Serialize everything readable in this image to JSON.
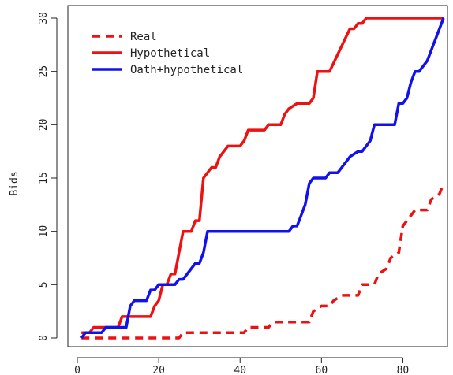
{
  "chart_data": {
    "type": "line",
    "xlabel": "",
    "ylabel": "Bids",
    "xlim": [
      0,
      90
    ],
    "ylim": [
      0,
      30
    ],
    "x_ticks": [
      0,
      20,
      40,
      60,
      80
    ],
    "y_ticks": [
      0,
      5,
      10,
      15,
      20,
      25,
      30
    ],
    "grid": false,
    "legend_position": "top-left",
    "series": [
      {
        "name": "Real",
        "color": "#ee1111",
        "style": "dashed",
        "x": [
          1,
          10,
          11,
          20,
          21,
          25,
          26,
          40,
          41,
          42,
          47,
          48,
          50,
          51,
          57,
          58,
          60,
          62,
          63,
          65,
          66,
          69,
          70,
          73,
          74,
          76,
          77,
          79,
          80,
          82,
          83,
          86,
          87,
          89,
          90
        ],
        "y": [
          0,
          0,
          0,
          0,
          0,
          0,
          0.5,
          0.5,
          0.5,
          1,
          1,
          1.5,
          1.5,
          1.5,
          1.5,
          2.5,
          3,
          3,
          3.5,
          4,
          4,
          4,
          5,
          5,
          6,
          6.5,
          7.5,
          8,
          10.5,
          11.5,
          12,
          12,
          13,
          13.5,
          14.5
        ]
      },
      {
        "name": "Hypothetical",
        "color": "#ee1111",
        "style": "solid",
        "x": [
          1,
          3,
          4,
          9,
          10,
          11,
          18,
          19,
          20,
          21,
          22,
          23,
          24,
          26,
          28,
          29,
          30,
          31,
          33,
          34,
          35,
          36,
          37,
          39,
          40,
          41,
          42,
          44,
          46,
          47,
          50,
          51,
          52,
          54,
          55,
          57,
          58,
          59,
          61,
          62,
          67,
          68,
          69,
          70,
          71,
          90
        ],
        "y": [
          0.5,
          0.5,
          1,
          1,
          1,
          2,
          2,
          3,
          3.5,
          5,
          5,
          6,
          6,
          10,
          10,
          11,
          11,
          15,
          16,
          16,
          17,
          17.5,
          18,
          18,
          18,
          18.5,
          19.5,
          19.5,
          19.5,
          20,
          20,
          21,
          21.5,
          22,
          22,
          22,
          22.5,
          25,
          25,
          25,
          29,
          29,
          29.5,
          29.5,
          30,
          30
        ]
      },
      {
        "name": "Oath+hypothetical",
        "color": "#1111ee",
        "style": "solid",
        "x": [
          1,
          2,
          6,
          7,
          12,
          13,
          14,
          15,
          17,
          18,
          19,
          20,
          24,
          25,
          26,
          27,
          28,
          29,
          30,
          31,
          32,
          33,
          40,
          45,
          50,
          52,
          53,
          54,
          55,
          56,
          57,
          58,
          59,
          61,
          62,
          64,
          66,
          67,
          69,
          70,
          71,
          72,
          73,
          77,
          78,
          79,
          80,
          81,
          82,
          83,
          84,
          86,
          87,
          90
        ],
        "y": [
          0,
          0.5,
          0.5,
          1,
          1,
          3,
          3.5,
          3.5,
          3.5,
          4.5,
          4.5,
          5,
          5,
          5.5,
          5.5,
          6,
          6.5,
          7,
          7,
          8,
          10,
          10,
          10,
          10,
          10,
          10,
          10.5,
          10.5,
          11.5,
          12.5,
          14.5,
          15,
          15,
          15,
          15.5,
          15.5,
          16.5,
          17,
          17.5,
          17.5,
          18,
          18.5,
          20,
          20,
          20,
          22,
          22,
          22.5,
          24,
          25,
          25,
          26,
          27,
          30
        ]
      }
    ]
  }
}
